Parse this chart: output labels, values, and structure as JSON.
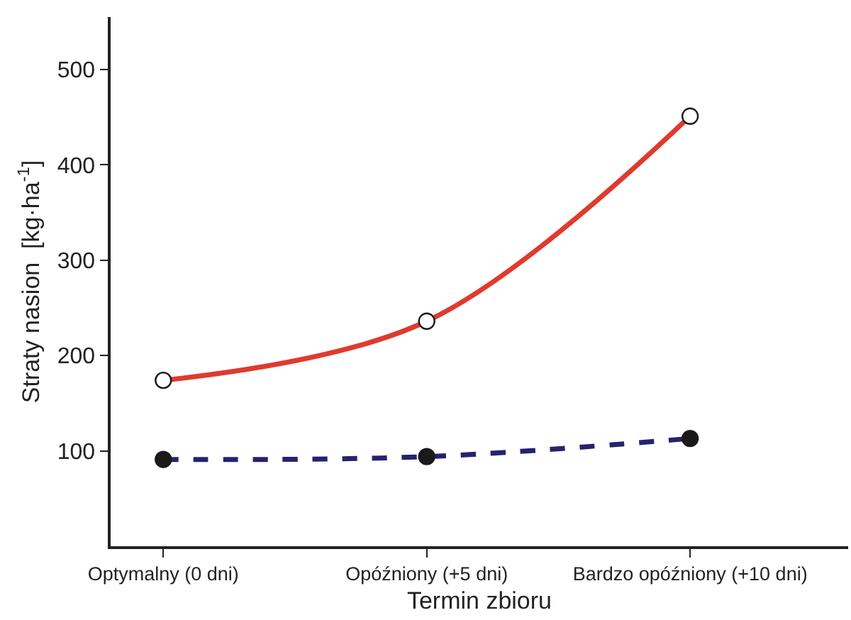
{
  "chart_data": {
    "type": "line",
    "xlabel": "Termin zbioru",
    "ylabel": "Straty nasion  [kg·ha$^{-1}$]",
    "categories": [
      "Optymalny (0 dni)",
      "Opóźniony (+5 dni)",
      "Bardzo opóźniony (+10 dni)"
    ],
    "series": [
      {
        "color": "#e03a2e",
        "values": [
          174,
          236,
          451
        ],
        "line_style": "solid",
        "marker": "none"
      },
      {
        "color": "#24236e",
        "values": [
          91,
          94,
          113
        ],
        "line_style": "dashed",
        "marker": "none"
      },
      {
        "type": "scatter",
        "color": "#ffffff",
        "values": [
          174,
          236,
          451
        ],
        "marker": "circle"
      },
      {
        "type": "scatter",
        "color": "#1a1a1a",
        "values": [
          91,
          94,
          113
        ],
        "marker": "circle"
      }
    ],
    "ylim": [
      0,
      555
    ],
    "yticks": [
      100,
      200,
      300,
      400,
      500
    ]
  }
}
